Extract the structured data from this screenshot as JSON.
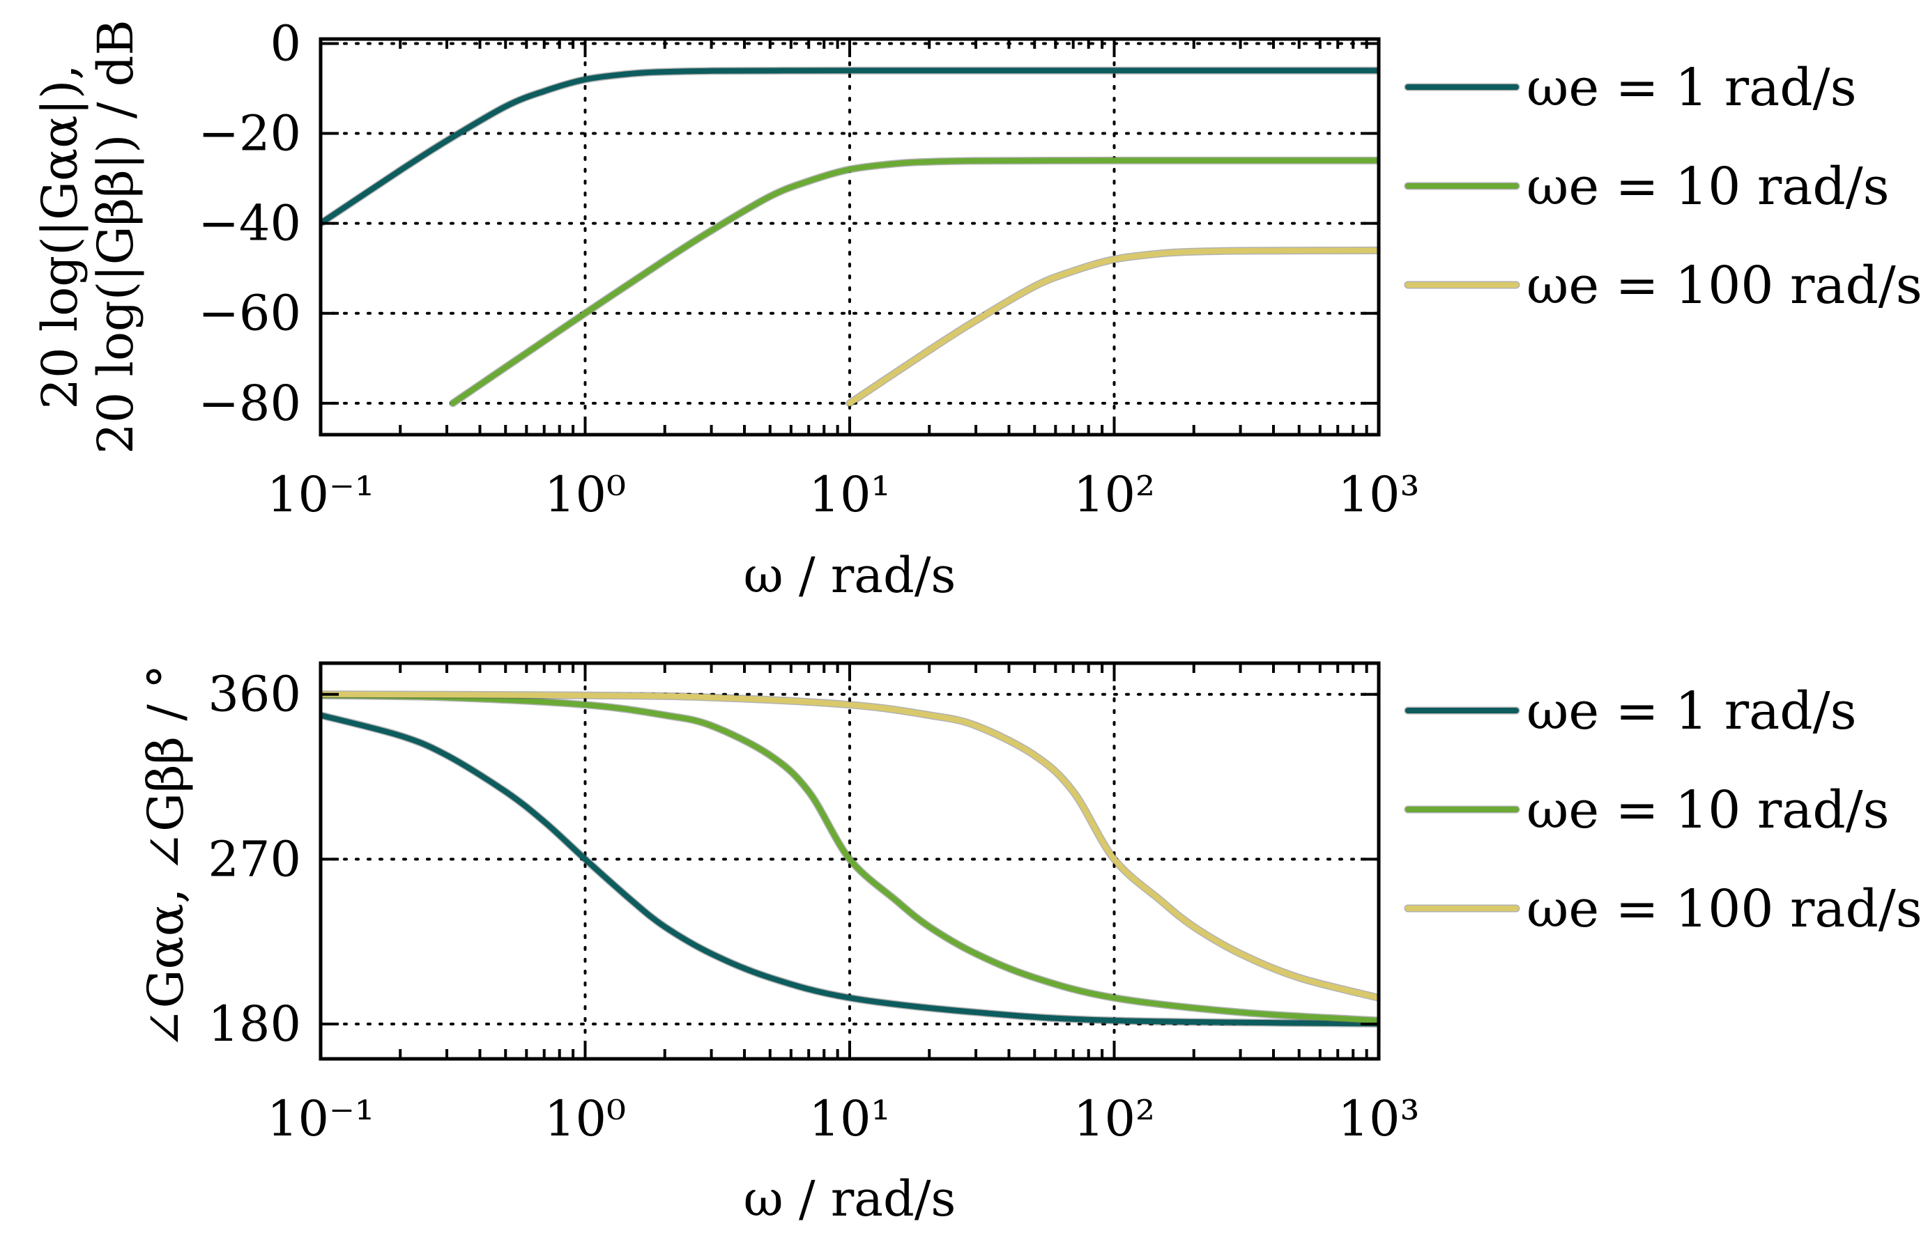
{
  "chart_data": [
    {
      "type": "line",
      "title": "",
      "xlabel": "ω / rad/s",
      "ylabel": [
        "20 log(|Gαα|),",
        "20 log(|Gββ|) / dB"
      ],
      "xscale": "log",
      "xlim": [
        0.1,
        1000
      ],
      "ylim": [
        -87,
        1
      ],
      "xticks": [
        0.1,
        1,
        10,
        100,
        1000
      ],
      "xtick_labels": [
        "10⁻¹",
        "10⁰",
        "10¹",
        "10²",
        "10³"
      ],
      "yticks": [
        0,
        -20,
        -40,
        -60,
        -80
      ],
      "ytick_labels": [
        "0",
        "−20",
        "−40",
        "−60",
        "−80"
      ],
      "grid": true,
      "legend_position": "outside-right",
      "series": [
        {
          "name": "ωe = 1 rad/s",
          "color": "#0d5c5e",
          "x": [
            0.1,
            0.2,
            0.3,
            0.5,
            0.7,
            1,
            1.5,
            2,
            3,
            5,
            10,
            100,
            1000
          ],
          "y": [
            -40,
            -28.2,
            -21.6,
            -14,
            -10.6,
            -8,
            -6.7,
            -6.3,
            -6.1,
            -6.05,
            -6.02,
            -6.02,
            -6.02
          ]
        },
        {
          "name": "ωe = 10 rad/s",
          "color": "#6aaa35",
          "x": [
            0.316,
            0.5,
            1,
            2,
            3,
            5,
            7,
            10,
            15,
            20,
            30,
            50,
            100,
            1000
          ],
          "y": [
            -80,
            -72,
            -60,
            -48.2,
            -41.6,
            -34,
            -30.6,
            -28,
            -26.7,
            -26.3,
            -26.1,
            -26.05,
            -26.02,
            -26.02
          ]
        },
        {
          "name": "ωe = 100 rad/s",
          "color": "#d9c96b",
          "x": [
            10,
            20,
            30,
            50,
            70,
            100,
            150,
            200,
            300,
            500,
            1000
          ],
          "y": [
            -80,
            -68.2,
            -61.6,
            -54,
            -50.6,
            -48,
            -46.7,
            -46.3,
            -46.1,
            -46.05,
            -46.02
          ]
        }
      ]
    },
    {
      "type": "line",
      "title": "",
      "xlabel": "ω / rad/s",
      "ylabel": [
        "∠Gαα, ∠Gββ / °"
      ],
      "xscale": "log",
      "xlim": [
        0.1,
        1000
      ],
      "ylim": [
        161,
        377
      ],
      "xticks": [
        0.1,
        1,
        10,
        100,
        1000
      ],
      "xtick_labels": [
        "10⁻¹",
        "10⁰",
        "10¹",
        "10²",
        "10³"
      ],
      "yticks": [
        360,
        270,
        180
      ],
      "ytick_labels": [
        "360",
        "270",
        "180"
      ],
      "grid": true,
      "legend_position": "outside-right",
      "series": [
        {
          "name": "ωe = 1 rad/s",
          "color": "#0d5c5e",
          "x": [
            0.1,
            0.2,
            0.3,
            0.5,
            0.7,
            1,
            1.5,
            2,
            3,
            5,
            10,
            30,
            100,
            1000
          ],
          "y": [
            348.6,
            337.4,
            326.7,
            306.9,
            290.5,
            270,
            247.4,
            233.1,
            218.4,
            205.3,
            194.3,
            186.4,
            181.9,
            180.2
          ]
        },
        {
          "name": "ωe = 10 rad/s",
          "color": "#6aaa35",
          "x": [
            0.1,
            0.3,
            1,
            2,
            3,
            5,
            7,
            10,
            15,
            20,
            30,
            50,
            100,
            300,
            1000
          ],
          "y": [
            359.4,
            358.3,
            354.3,
            348.6,
            342.9,
            326.7,
            306.9,
            270,
            247.4,
            233.1,
            218.4,
            205.3,
            194.3,
            186.4,
            181.9
          ]
        },
        {
          "name": "ωe = 100 rad/s",
          "color": "#d9c96b",
          "x": [
            0.1,
            1,
            3,
            10,
            20,
            30,
            50,
            70,
            100,
            150,
            200,
            300,
            500,
            1000
          ],
          "y": [
            360,
            359.4,
            358.3,
            354.3,
            348.6,
            342.9,
            326.7,
            306.9,
            270,
            247.4,
            233.1,
            218.4,
            205.3,
            194.3
          ]
        }
      ]
    }
  ]
}
